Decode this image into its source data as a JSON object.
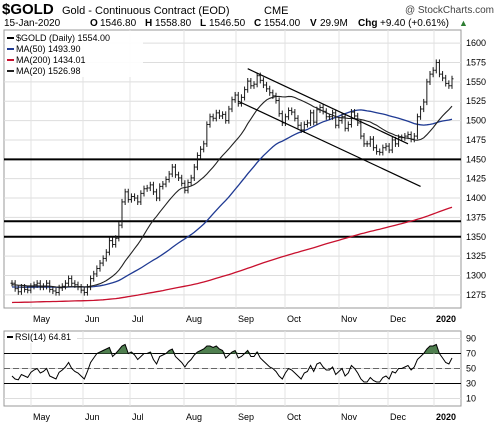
{
  "header": {
    "symbol": "$GOLD",
    "name": "Gold - Continuous Contract (EOD)",
    "exchange": "CME",
    "copyright": "@ StockCharts.com",
    "date": "15-Jan-2020",
    "open_label": "O",
    "open": "1546.80",
    "high_label": "H",
    "high": "1558.80",
    "low_label": "L",
    "low": "1546.50",
    "close_label": "C",
    "close": "1554.00",
    "volume_label": "V",
    "volume": "29.9M",
    "change_label": "Chg",
    "change": "+9.40 (+0.61%)",
    "change_arrow": "▲"
  },
  "legend": [
    {
      "label": "$GOLD (Daily) 1554.00",
      "color": "#000000"
    },
    {
      "label": "MA(50) 1493.90",
      "color": "#1f3a93"
    },
    {
      "label": "MA(200) 1434.01",
      "color": "#c8102e"
    },
    {
      "label": "MA(20) 1526.98",
      "color": "#222222"
    }
  ],
  "rsi_panel": {
    "label": "RSI(14) 64.81",
    "overbought": 70,
    "oversold": 30,
    "mid": 50
  },
  "colors": {
    "rsi_fill": "#4f7f4f",
    "ma50": "#1f3a93",
    "ma200": "#c8102e",
    "ma20": "#222222",
    "price": "#000000"
  },
  "chart_data": [
    {
      "type": "line",
      "title": "$GOLD (Daily) 1554.00",
      "x_ticks": [
        "May",
        "Jun",
        "Jul",
        "Aug",
        "Sep",
        "Oct",
        "Nov",
        "Dec",
        "2020"
      ],
      "y_ticks": [
        1275,
        1300,
        1325,
        1350,
        1375,
        1400,
        1425,
        1450,
        1475,
        1500,
        1525,
        1550,
        1575,
        1600
      ],
      "ylim": [
        1258,
        1617
      ],
      "horizontal_levels": [
        1450,
        1370,
        1350
      ],
      "channel_upper": [
        [
          1567,
          1470
        ]
      ],
      "channel_lower": [
        [
          1525,
          1415
        ]
      ],
      "series": [
        {
          "name": "$GOLD (Daily) 1554.00",
          "values": [
            1290,
            1283,
            1279,
            1285,
            1282,
            1281,
            1286,
            1288,
            1290,
            1285,
            1286,
            1290,
            1282,
            1280,
            1278,
            1284,
            1286,
            1290,
            1296,
            1290,
            1288,
            1285,
            1281,
            1278,
            1285,
            1296,
            1302,
            1309,
            1316,
            1322,
            1330,
            1345,
            1340,
            1348,
            1365,
            1395,
            1408,
            1398,
            1402,
            1400,
            1395,
            1406,
            1412,
            1413,
            1417,
            1408,
            1400,
            1415,
            1418,
            1424,
            1431,
            1440,
            1430,
            1426,
            1419,
            1410,
            1420,
            1426,
            1440,
            1455,
            1463,
            1470,
            1495,
            1505,
            1503,
            1510,
            1506,
            1508,
            1500,
            1515,
            1527,
            1533,
            1522,
            1530,
            1540,
            1551,
            1545,
            1547,
            1558,
            1552,
            1546,
            1541,
            1536,
            1532,
            1526,
            1509,
            1497,
            1505,
            1513,
            1511,
            1503,
            1494,
            1488,
            1495,
            1497,
            1510,
            1498,
            1514,
            1517,
            1512,
            1505,
            1505,
            1510,
            1494,
            1500,
            1505,
            1490,
            1495,
            1511,
            1506,
            1497,
            1480,
            1470,
            1470,
            1476,
            1465,
            1460,
            1459,
            1465,
            1467,
            1462,
            1475,
            1470,
            1478,
            1478,
            1480,
            1482,
            1476,
            1480,
            1505,
            1515,
            1524,
            1550,
            1560,
            1565,
            1575,
            1560,
            1555,
            1548,
            1545,
            1554
          ]
        },
        {
          "name": "MA(50) 1493.90",
          "values": []
        },
        {
          "name": "MA(200) 1434.01",
          "values": []
        },
        {
          "name": "MA(20) 1526.98",
          "values": []
        }
      ]
    },
    {
      "type": "line",
      "title": "RSI(14) 64.81",
      "x_ticks": [
        "May",
        "Jun",
        "Jul",
        "Aug",
        "Sep",
        "Oct",
        "Nov",
        "Dec",
        "2020"
      ],
      "y_ticks": [
        10,
        30,
        50,
        70,
        90
      ],
      "ylim": [
        0,
        100
      ],
      "series": [
        {
          "name": "RSI(14) 64.81",
          "values": [
            40,
            36,
            35,
            42,
            40,
            38,
            45,
            48,
            50,
            44,
            46,
            50,
            40,
            38,
            36,
            45,
            48,
            52,
            58,
            50,
            46,
            44,
            40,
            36,
            46,
            58,
            64,
            70,
            72,
            74,
            76,
            78,
            66,
            70,
            75,
            80,
            82,
            70,
            72,
            68,
            62,
            66,
            70,
            70,
            72,
            62,
            56,
            66,
            68,
            70,
            74,
            76,
            66,
            62,
            58,
            52,
            58,
            62,
            68,
            72,
            74,
            76,
            80,
            80,
            78,
            80,
            76,
            74,
            64,
            68,
            72,
            74,
            64,
            66,
            70,
            74,
            66,
            66,
            72,
            64,
            60,
            56,
            52,
            50,
            46,
            40,
            36,
            44,
            50,
            48,
            44,
            40,
            36,
            44,
            46,
            54,
            46,
            56,
            58,
            52,
            48,
            48,
            52,
            42,
            46,
            50,
            40,
            44,
            54,
            50,
            44,
            36,
            32,
            32,
            38,
            34,
            32,
            32,
            38,
            40,
            36,
            46,
            44,
            50,
            50,
            52,
            54,
            48,
            52,
            62,
            66,
            70,
            76,
            80,
            80,
            82,
            70,
            64,
            58,
            56,
            64
          ]
        }
      ]
    }
  ]
}
